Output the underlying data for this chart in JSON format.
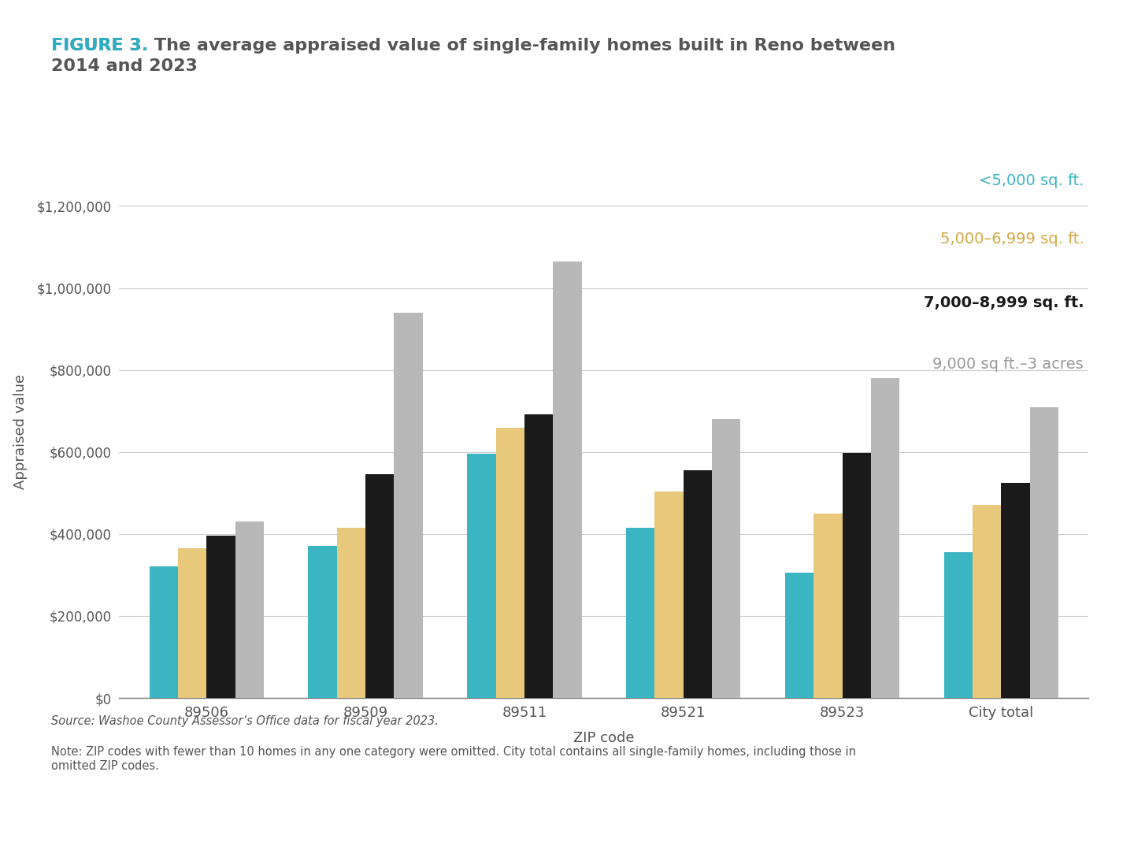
{
  "title_bold": "FIGURE 3.",
  "title_bold_color": "#2ab0c5",
  "title_rest": " The average appraised value of single-family homes built in Reno between\n2014 and 2023",
  "title_color": "#555555",
  "categories": [
    "89506",
    "89509",
    "89511",
    "89521",
    "89523",
    "City total"
  ],
  "series": [
    {
      "label": "<5,000 sq. ft.",
      "color": "#3ab5c1",
      "label_style": "normal",
      "label_color": "#3ab5c1",
      "values": [
        320000,
        370000,
        595000,
        415000,
        305000,
        355000
      ]
    },
    {
      "label": "5,000–6,999 sq. ft.",
      "color": "#e8c87a",
      "label_style": "normal",
      "label_color": "#d4a843",
      "values": [
        365000,
        415000,
        660000,
        503000,
        450000,
        470000
      ]
    },
    {
      "label": "7,000–8,999 sq. ft.",
      "color": "#1a1a1a",
      "label_style": "bold",
      "label_color": "#1a1a1a",
      "values": [
        395000,
        545000,
        692000,
        555000,
        597000,
        525000
      ]
    },
    {
      "label": "9,000 sq ft.–3 acres",
      "color": "#b8b8b8",
      "label_style": "normal",
      "label_color": "#999999",
      "values": [
        430000,
        940000,
        1065000,
        680000,
        780000,
        710000
      ]
    }
  ],
  "ylabel": "Appraised value",
  "xlabel": "ZIP code",
  "ylim_max": 1300000,
  "yticks": [
    0,
    200000,
    400000,
    600000,
    800000,
    1000000,
    1200000
  ],
  "ytick_labels": [
    "$0",
    "$200,000",
    "$400,000",
    "$600,000",
    "$800,000",
    "$1,000,000",
    "$1,200,000"
  ],
  "source_text": "Source: Washoe County Assessor’s Office data for fiscal year 2023.",
  "note_text": "Note: ZIP codes with fewer than 10 homes in any one category were omitted. City total contains all single-family homes, including those in\nomitted ZIP codes.",
  "background_color": "#ffffff",
  "grid_color": "#cccccc",
  "bar_width": 0.18
}
